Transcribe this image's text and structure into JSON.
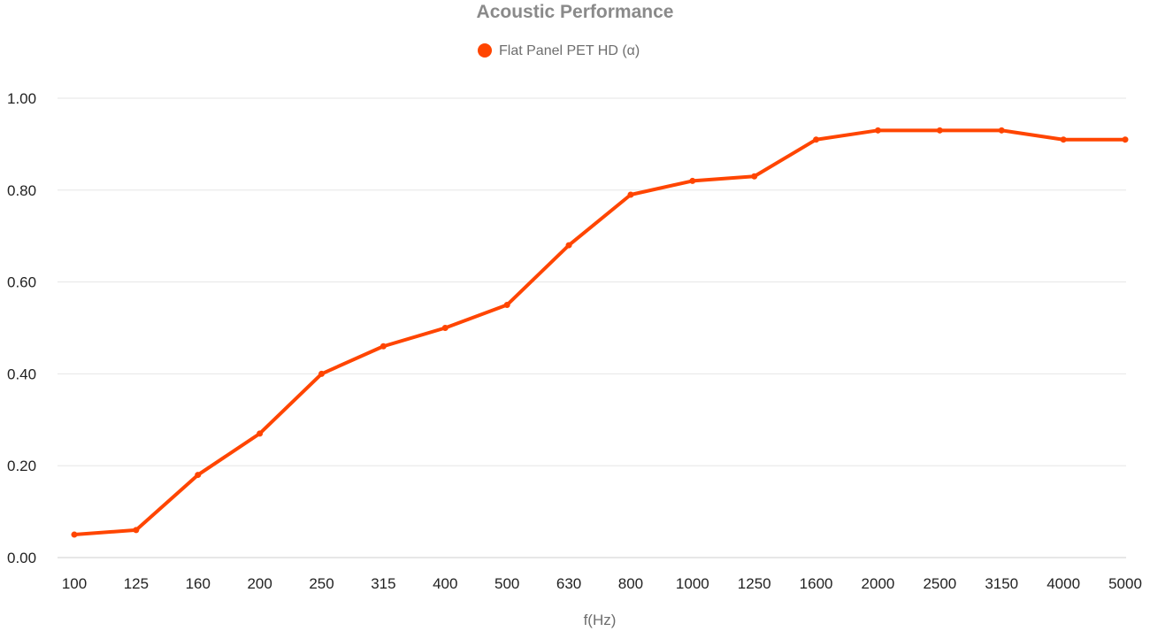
{
  "chart_data": {
    "type": "line",
    "title": "Acoustic Performance",
    "xlabel": "f(Hz)",
    "ylabel": "",
    "categories": [
      "100",
      "125",
      "160",
      "200",
      "250",
      "315",
      "400",
      "500",
      "630",
      "800",
      "1000",
      "1250",
      "1600",
      "2000",
      "2500",
      "3150",
      "4000",
      "5000"
    ],
    "series": [
      {
        "name": "Flat Panel PET HD (α)",
        "color": "#ff4500",
        "values": [
          0.05,
          0.06,
          0.18,
          0.27,
          0.4,
          0.46,
          0.5,
          0.55,
          0.68,
          0.79,
          0.82,
          0.83,
          0.91,
          0.93,
          0.93,
          0.93,
          0.91,
          0.91
        ]
      }
    ],
    "ylim": [
      0,
      1
    ],
    "yticks": [
      "0.00",
      "0.20",
      "0.40",
      "0.60",
      "0.80",
      "1.00"
    ],
    "grid": true,
    "legend_position": "top-center"
  }
}
